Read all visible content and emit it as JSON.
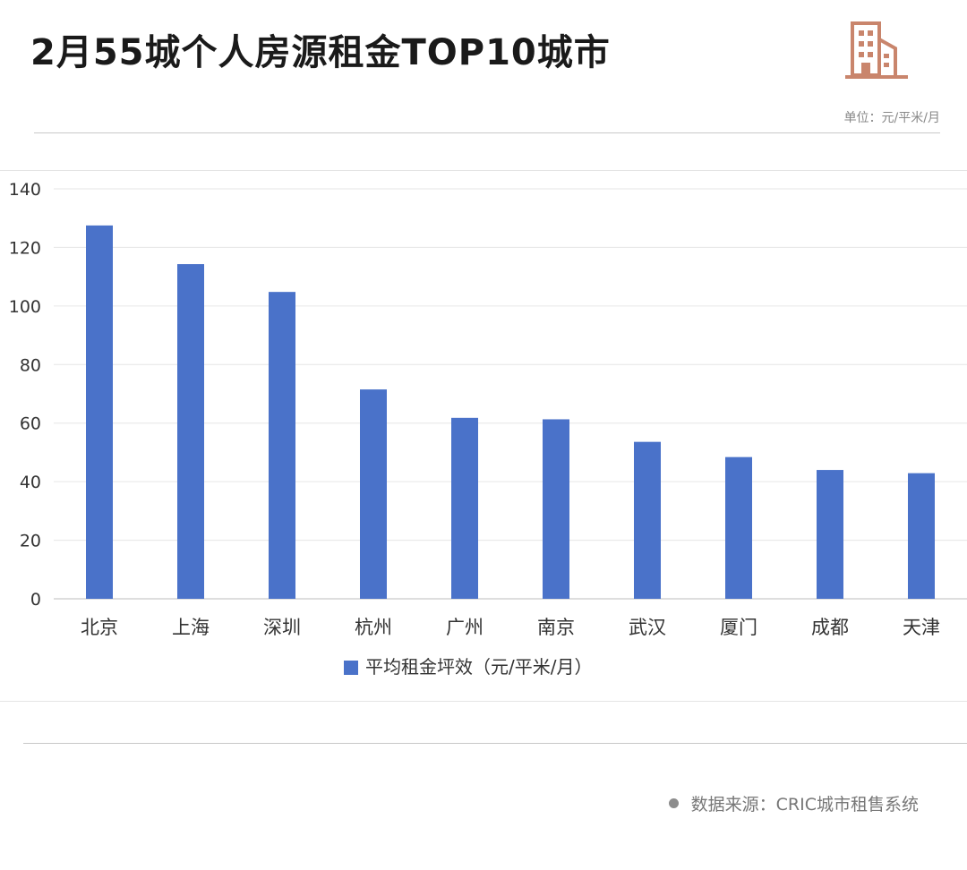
{
  "header": {
    "title": "2月55城个人房源租金TOP10城市",
    "unit_label": "单位：元/平米/月"
  },
  "footer": {
    "source": "数据来源：CRIC城市租售系统"
  },
  "colors": {
    "bar": "#4a72c9",
    "logo": "#c9856c"
  },
  "chart_data": {
    "type": "bar",
    "title": "2月55城个人房源租金TOP10城市",
    "xlabel": "",
    "ylabel": "",
    "categories": [
      "北京",
      "上海",
      "深圳",
      "杭州",
      "广州",
      "南京",
      "武汉",
      "厦门",
      "成都",
      "天津"
    ],
    "series": [
      {
        "name": "平均租金坪效（元/平米/月）",
        "values": [
          127.5,
          114.3,
          104.8,
          71.5,
          61.8,
          61.3,
          53.6,
          48.4,
          44.0,
          42.9
        ]
      }
    ],
    "yticks": [
      "0",
      "20",
      "40",
      "60",
      "80",
      "100",
      "120",
      "140"
    ],
    "ylim": [
      0,
      140
    ],
    "grid": true,
    "legend": "bottom-center"
  }
}
